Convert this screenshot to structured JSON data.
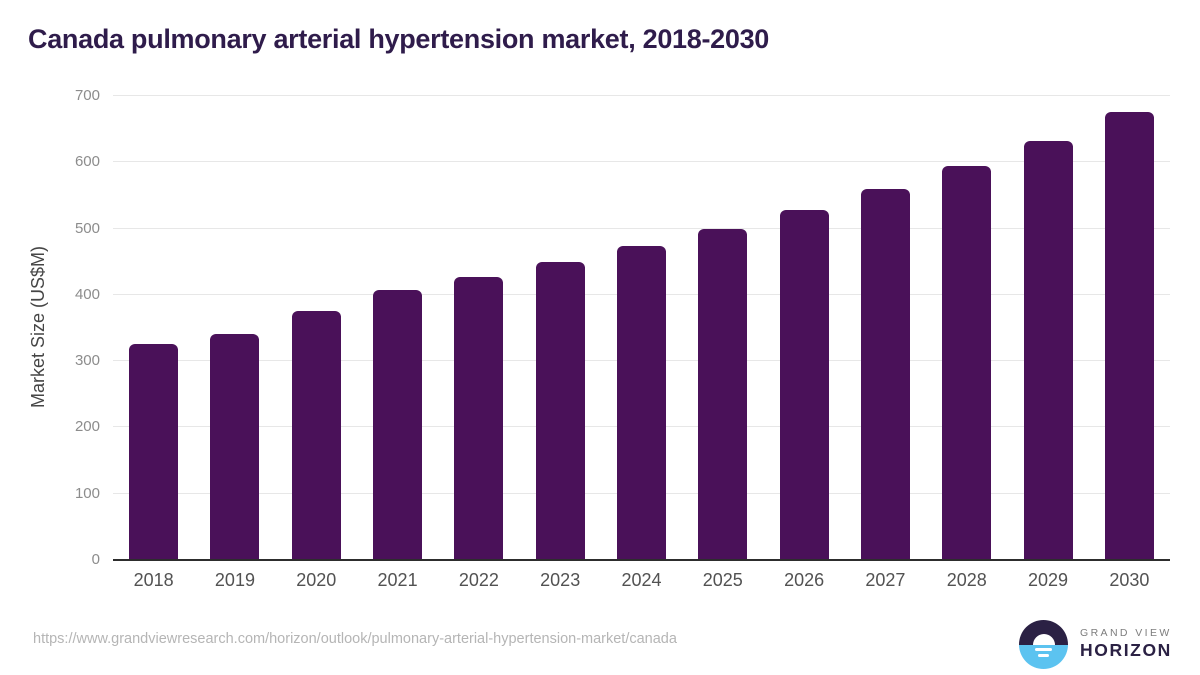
{
  "chart_data": {
    "type": "bar",
    "title": "Canada pulmonary arterial hypertension market, 2018-2030",
    "categories": [
      "2018",
      "2019",
      "2020",
      "2021",
      "2022",
      "2023",
      "2024",
      "2025",
      "2026",
      "2027",
      "2028",
      "2029",
      "2030"
    ],
    "values": [
      325,
      340,
      374,
      406,
      425,
      448,
      472,
      498,
      527,
      558,
      593,
      631,
      674
    ],
    "xlabel": "",
    "ylabel": "Market Size (US$M)",
    "ylim": [
      0,
      700
    ],
    "ytick_step": 100,
    "grid": "horizontal",
    "legend": "none",
    "bar_color": "#4a1159"
  },
  "colors": {
    "title": "#2f1c4b",
    "bar": "#4a1159",
    "gridline": "#e7e7e7",
    "axis_line": "#2d2d2d",
    "y_tick_label": "#8c8c8c",
    "x_tick_label": "#525252",
    "url_text": "#b5b5b5",
    "logo_navy": "#2b2144",
    "logo_blue": "#5cc3f0"
  },
  "footer": {
    "source_url": "https://www.grandviewresearch.com/horizon/outlook/pulmonary-arterial-hypertension-market/canada",
    "logo": {
      "top": "GRAND VIEW",
      "bottom": "HORIZON"
    }
  }
}
